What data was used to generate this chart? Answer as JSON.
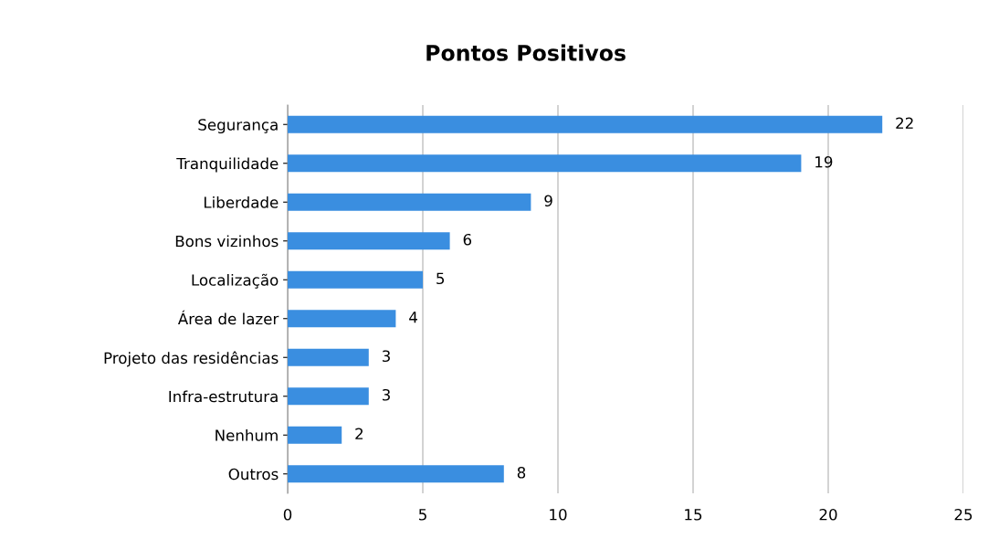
{
  "chart_data": {
    "type": "bar",
    "orientation": "horizontal",
    "title": "Pontos Positivos",
    "categories": [
      "Segurança",
      "Tranquilidade",
      "Liberdade",
      "Bons vizinhos",
      "Localização",
      "Área de lazer",
      "Projeto das residências",
      "Infra-estrutura",
      "Nenhum",
      "Outros"
    ],
    "values": [
      22,
      19,
      9,
      6,
      5,
      4,
      3,
      3,
      2,
      8
    ],
    "color": "#3a8ee0",
    "xlim": [
      0,
      25
    ],
    "xticks": [
      0,
      5,
      10,
      15,
      20,
      25
    ],
    "grid": "x",
    "data_labels": true
  }
}
